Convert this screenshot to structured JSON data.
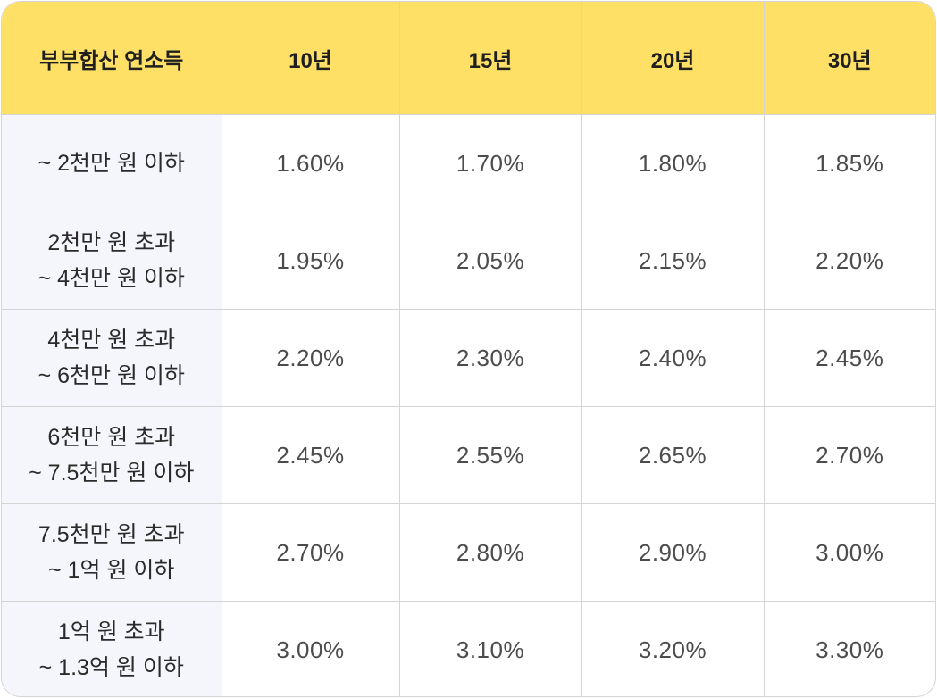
{
  "table": {
    "headers": [
      "부부합산 연소득",
      "10년",
      "15년",
      "20년",
      "30년"
    ],
    "rows": [
      {
        "label": [
          "~ 2천만 원 이하"
        ],
        "values": [
          "1.60%",
          "1.70%",
          "1.80%",
          "1.85%"
        ]
      },
      {
        "label": [
          "2천만 원 초과",
          "~ 4천만 원 이하"
        ],
        "values": [
          "1.95%",
          "2.05%",
          "2.15%",
          "2.20%"
        ]
      },
      {
        "label": [
          "4천만 원 초과",
          "~ 6천만 원 이하"
        ],
        "values": [
          "2.20%",
          "2.30%",
          "2.40%",
          "2.45%"
        ]
      },
      {
        "label": [
          "6천만 원 초과",
          "~ 7.5천만 원 이하"
        ],
        "values": [
          "2.45%",
          "2.55%",
          "2.65%",
          "2.70%"
        ]
      },
      {
        "label": [
          "7.5천만 원 초과",
          "~ 1억 원 이하"
        ],
        "values": [
          "2.70%",
          "2.80%",
          "2.90%",
          "3.00%"
        ]
      },
      {
        "label": [
          "1억 원 초과",
          "~ 1.3억 원 이하"
        ],
        "values": [
          "3.00%",
          "3.10%",
          "3.20%",
          "3.30%"
        ]
      }
    ]
  },
  "colors": {
    "header_bg": "#ffe066",
    "label_bg": "#f5f6fb",
    "border": "#d4d4d4"
  }
}
